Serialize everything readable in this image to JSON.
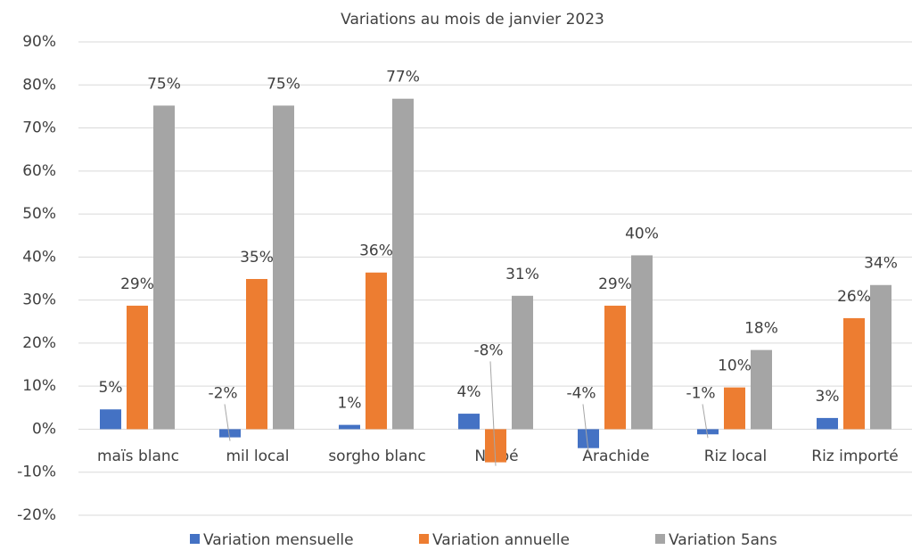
{
  "chart_data": {
    "type": "bar",
    "title": "Variations au mois de janvier 2023",
    "categories": [
      "maïs blanc",
      "mil local",
      "sorgho blanc",
      "Niébé",
      "Arachide",
      "Riz local",
      "Riz importé"
    ],
    "series": [
      {
        "name": "Variation mensuelle",
        "color": "#4472c4",
        "values": [
          4.6,
          -1.9,
          1.0,
          3.6,
          -4.4,
          -1.2,
          2.6
        ],
        "value_labels": [
          "5%",
          "-2%",
          "1%",
          "4%",
          "-4%",
          "-1%",
          "3%"
        ]
      },
      {
        "name": "Variation annuelle",
        "color": "#ed7d31",
        "values": [
          28.7,
          34.9,
          36.4,
          -7.7,
          28.7,
          9.7,
          25.8
        ],
        "value_labels": [
          "29%",
          "35%",
          "36%",
          "-8%",
          "29%",
          "10%",
          "26%"
        ]
      },
      {
        "name": "Variation 5ans",
        "color": "#a5a5a5",
        "values": [
          75.2,
          75.2,
          76.8,
          31.0,
          40.4,
          18.4,
          33.5
        ],
        "value_labels": [
          "75%",
          "75%",
          "77%",
          "31%",
          "40%",
          "18%",
          "34%"
        ]
      }
    ],
    "ylim": [
      -20,
      90
    ],
    "yticks": [
      {
        "value": -20,
        "label": "-20%"
      },
      {
        "value": -10,
        "label": "-10%"
      },
      {
        "value": 0,
        "label": "0%"
      },
      {
        "value": 10,
        "label": "10%"
      },
      {
        "value": 20,
        "label": "20%"
      },
      {
        "value": 30,
        "label": "30%"
      },
      {
        "value": 40,
        "label": "40%"
      },
      {
        "value": 50,
        "label": "50%"
      },
      {
        "value": 60,
        "label": "60%"
      },
      {
        "value": 70,
        "label": "70%"
      },
      {
        "value": 80,
        "label": "80%"
      },
      {
        "value": 90,
        "label": "90%"
      }
    ],
    "grid": true,
    "legend": "bottom"
  }
}
